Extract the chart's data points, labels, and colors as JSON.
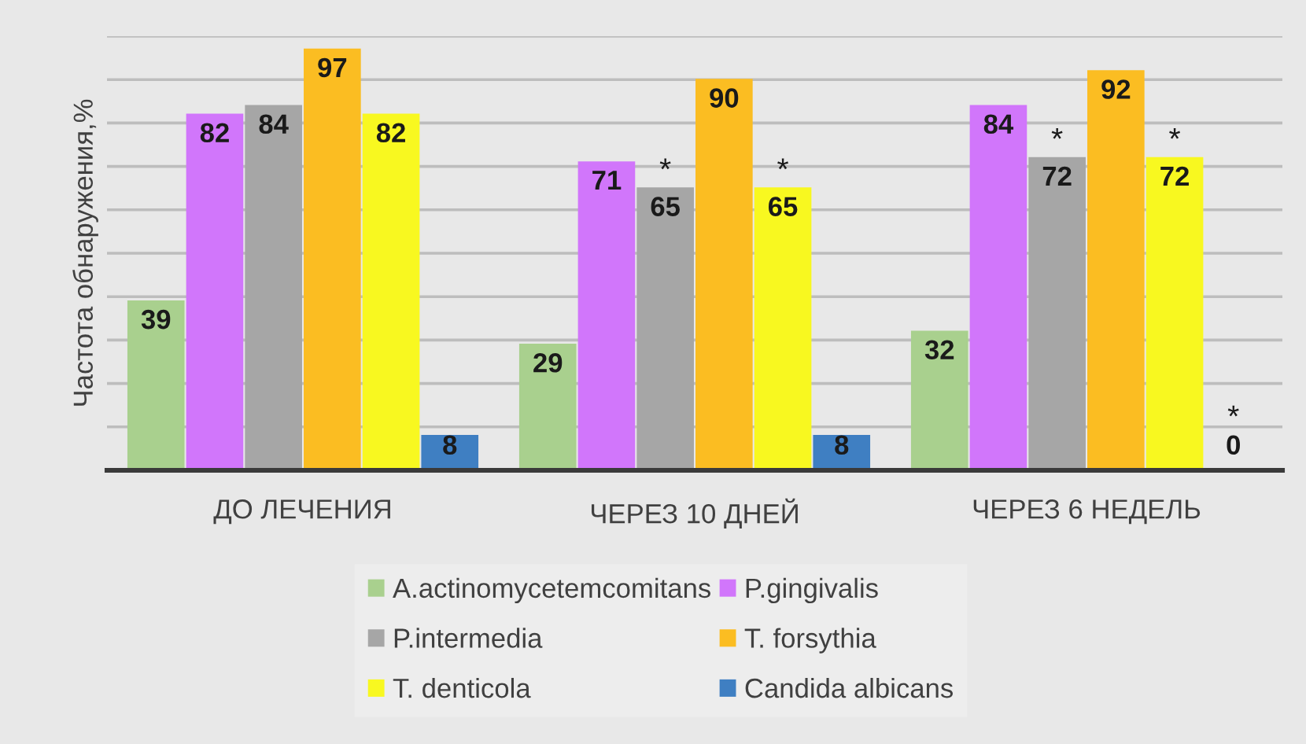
{
  "chart_data": {
    "type": "bar",
    "ylabel": "Частота обнаружения,%",
    "categories": [
      "ДО ЛЕЧЕНИЯ",
      "ЧЕРЕЗ 10 ДНЕЙ",
      "ЧЕРЕЗ 6 НЕДЕЛЬ"
    ],
    "series": [
      {
        "name": "A.actinomycetemcomitans",
        "color": "#a9d08e",
        "values": [
          39,
          29,
          32
        ]
      },
      {
        "name": "P.gingivalis",
        "color": "#d176fb",
        "values": [
          82,
          71,
          84
        ]
      },
      {
        "name": "P.intermedia",
        "color": "#a6a6a6",
        "values": [
          84,
          65,
          72
        ]
      },
      {
        "name": "T. forsythia",
        "color": "#fbbd22",
        "values": [
          97,
          90,
          92
        ]
      },
      {
        "name": "T. denticola",
        "color": "#f8f820",
        "values": [
          82,
          65,
          72
        ]
      },
      {
        "name": "Candida albicans",
        "color": "#3f7fc2",
        "values": [
          8,
          8,
          0
        ]
      }
    ],
    "ylim": [
      0,
      100
    ],
    "yticks": [
      {
        "value": 0,
        "label": null
      },
      {
        "value": 10,
        "label": null
      },
      {
        "value": 20,
        "label": null
      },
      {
        "value": 30,
        "label": null
      },
      {
        "value": 40,
        "label": null
      },
      {
        "value": 50,
        "label": null
      },
      {
        "value": 60,
        "label": null
      },
      {
        "value": 70,
        "label": null
      },
      {
        "value": 80,
        "label": null
      },
      {
        "value": 90,
        "label": null
      },
      {
        "value": 100,
        "label": null
      }
    ],
    "grid": "y",
    "tick_labels": "x",
    "legend": "bottom",
    "data_labels": true,
    "annotations": [
      {
        "text": "*",
        "x": "ЧЕРЕЗ 10 ДНЕЙ",
        "y": 65
      },
      {
        "text": "*",
        "x": "ЧЕРЕЗ 10 ДНЕЙ",
        "y": 65
      },
      {
        "text": "*",
        "x": "ЧЕРЕЗ 6 НЕДЕЛЬ",
        "y": 72
      },
      {
        "text": "*",
        "x": "ЧЕРЕЗ 6 НЕДЕЛЬ",
        "y": 72
      },
      "*"
    ]
  }
}
